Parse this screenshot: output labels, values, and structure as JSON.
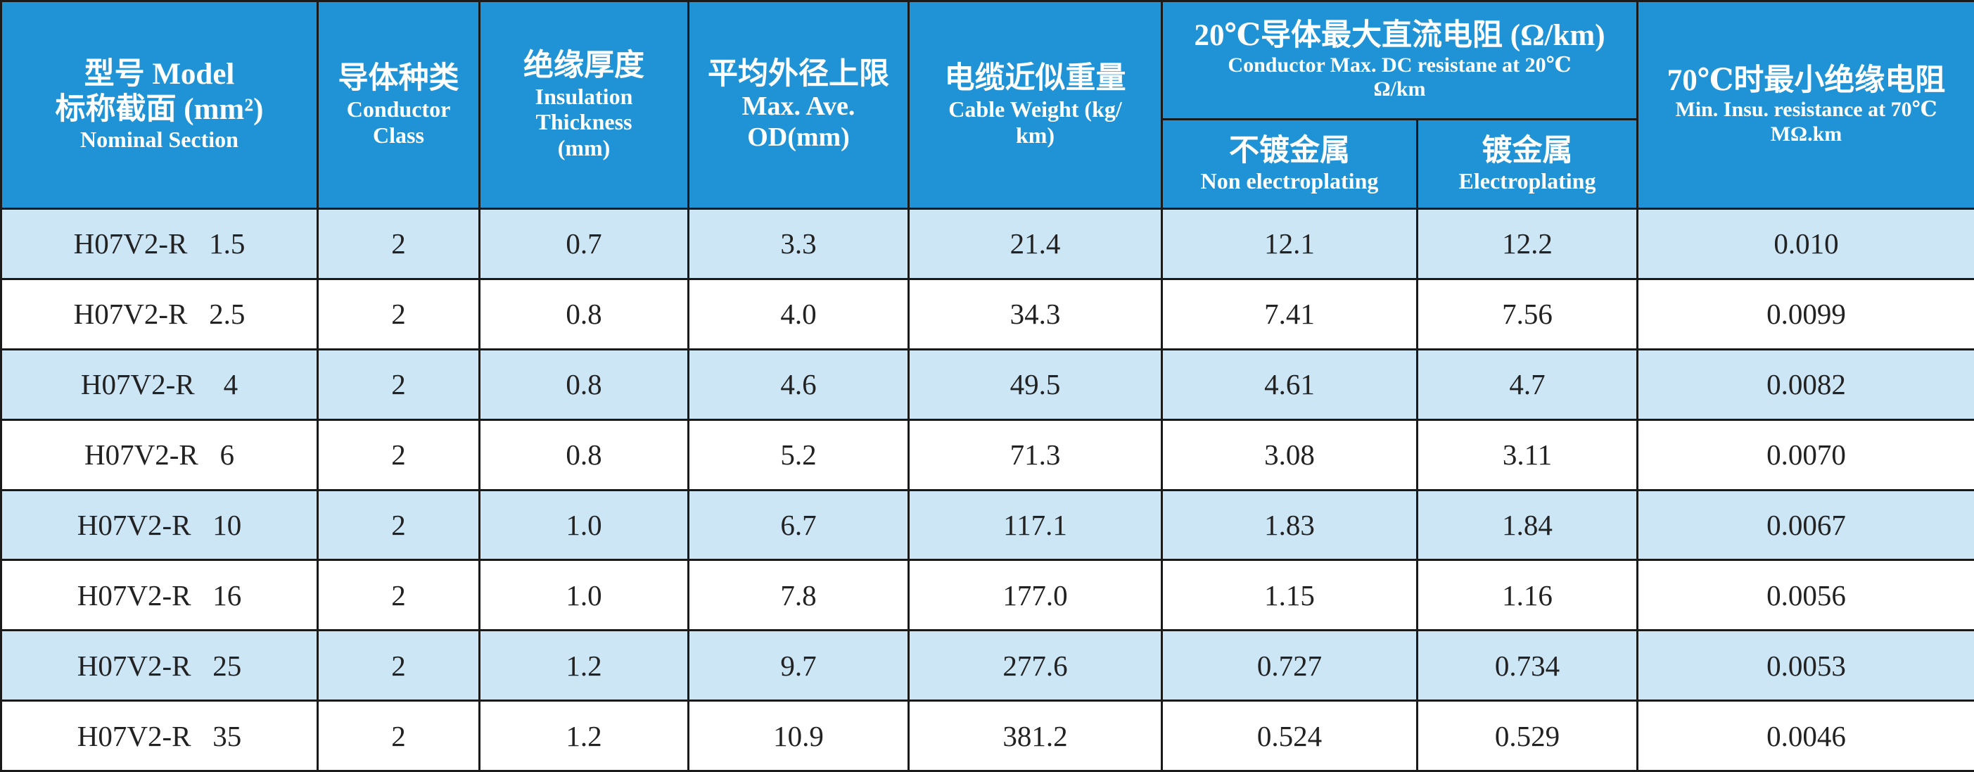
{
  "headers": {
    "model": {
      "cn_line1": "型号 Model",
      "cn_line2": "标称截面 (mm²)",
      "en": "Nominal Section"
    },
    "conductor": {
      "cn": "导体种类",
      "en_line1": "Conductor",
      "en_line2": "Class"
    },
    "insulation": {
      "cn": "绝缘厚度",
      "en_line1": "Insulation",
      "en_line2": "Thickness",
      "en_line3": "(mm)"
    },
    "od": {
      "cn": "平均外径上限",
      "en_line1": "Max. Ave.",
      "en_line2": "OD(mm)"
    },
    "weight": {
      "cn": "电缆近似重量",
      "en_line1": "Cable  Weight (kg/",
      "en_line2": "km)"
    },
    "resistance": {
      "cn": "20℃导体最大直流电阻 (Ω/km)",
      "en_line1": "Conductor Max. DC resistane at 20℃",
      "en_line2": "Ω/km",
      "sub_non_cn": "不镀金属",
      "sub_non_en": "Non electroplating",
      "sub_el_cn": "镀金属",
      "sub_el_en": "Electroplating"
    },
    "insulation_resistance": {
      "cn": "70℃时最小绝缘电阻",
      "en_line1": "Min. Insu. resistance at 70℃",
      "en_line2": "MΩ.km"
    }
  },
  "rows": [
    {
      "model": "H07V2-R   1.5",
      "class": "2",
      "thickness": "0.7",
      "od": "3.3",
      "weight": "21.4",
      "res_non": "12.1",
      "res_el": "12.2",
      "insu_res": "0.010"
    },
    {
      "model": "H07V2-R   2.5",
      "class": "2",
      "thickness": "0.8",
      "od": "4.0",
      "weight": "34.3",
      "res_non": "7.41",
      "res_el": "7.56",
      "insu_res": "0.0099"
    },
    {
      "model": "H07V2-R    4",
      "class": "2",
      "thickness": "0.8",
      "od": "4.6",
      "weight": "49.5",
      "res_non": "4.61",
      "res_el": "4.7",
      "insu_res": "0.0082"
    },
    {
      "model": "H07V2-R   6",
      "class": "2",
      "thickness": "0.8",
      "od": "5.2",
      "weight": "71.3",
      "res_non": "3.08",
      "res_el": "3.11",
      "insu_res": "0.0070"
    },
    {
      "model": "H07V2-R   10",
      "class": "2",
      "thickness": "1.0",
      "od": "6.7",
      "weight": "117.1",
      "res_non": "1.83",
      "res_el": "1.84",
      "insu_res": "0.0067"
    },
    {
      "model": "H07V2-R   16",
      "class": "2",
      "thickness": "1.0",
      "od": "7.8",
      "weight": "177.0",
      "res_non": "1.15",
      "res_el": "1.16",
      "insu_res": "0.0056"
    },
    {
      "model": "H07V2-R   25",
      "class": "2",
      "thickness": "1.2",
      "od": "9.7",
      "weight": "277.6",
      "res_non": "0.727",
      "res_el": "0.734",
      "insu_res": "0.0053"
    },
    {
      "model": "H07V2-R   35",
      "class": "2",
      "thickness": "1.2",
      "od": "10.9",
      "weight": "381.2",
      "res_non": "0.524",
      "res_el": "0.529",
      "insu_res": "0.0046"
    }
  ],
  "colors": {
    "header_bg": "#1f93d5",
    "odd_row_bg": "#cde6f6",
    "even_row_bg": "#ffffff",
    "grid_line": "#1a1a1a"
  }
}
